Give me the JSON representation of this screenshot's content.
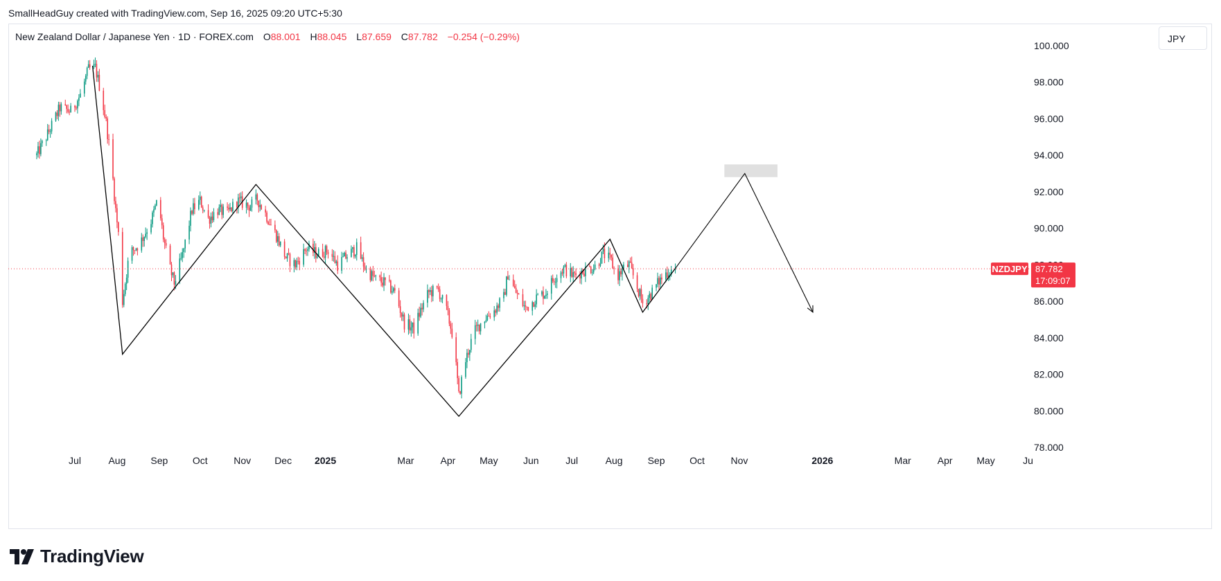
{
  "credit": "SmallHeadGuy created with TradingView.com, Sep 16, 2025 09:20 UTC+5:30",
  "legend": {
    "symbol_desc": "New Zealand Dollar / Japanese Yen · 1D · FOREX.com",
    "open_label": "O",
    "open": "88.001",
    "high_label": "H",
    "high": "88.045",
    "low_label": "L",
    "low": "87.659",
    "close_label": "C",
    "close": "87.782",
    "change": "−0.254 (−0.29%)"
  },
  "currency_button": "JPY",
  "price_badge": {
    "symbol": "NZDJPY",
    "price": "87.782",
    "countdown": "17:09:07"
  },
  "logo": {
    "text": "TradingView",
    "icon": "tradingview-logo-icon"
  },
  "colors": {
    "up": "#089981",
    "down": "#f23645",
    "accent": "#f23645",
    "text": "#131722",
    "grid": "#e0e3eb"
  },
  "chart_data": {
    "type": "candlestick",
    "symbol": "NZDJPY",
    "interval": "1D",
    "ylim": [
      78,
      100
    ],
    "y_ticks": [
      "78.000",
      "80.000",
      "82.000",
      "84.000",
      "86.000",
      "88.000",
      "90.000",
      "92.000",
      "94.000",
      "96.000",
      "98.000",
      "100.000"
    ],
    "x_ticks": [
      {
        "label": "Jul",
        "date": "2024-07-01",
        "bold": false
      },
      {
        "label": "Aug",
        "date": "2024-08-01",
        "bold": false
      },
      {
        "label": "Sep",
        "date": "2024-09-01",
        "bold": false
      },
      {
        "label": "Oct",
        "date": "2024-10-01",
        "bold": false
      },
      {
        "label": "Nov",
        "date": "2024-11-01",
        "bold": false
      },
      {
        "label": "Dec",
        "date": "2024-12-01",
        "bold": false
      },
      {
        "label": "2025",
        "date": "2025-01-01",
        "bold": true
      },
      {
        "label": "Mar",
        "date": "2025-03-01",
        "bold": false
      },
      {
        "label": "Apr",
        "date": "2025-04-01",
        "bold": false
      },
      {
        "label": "May",
        "date": "2025-05-01",
        "bold": false
      },
      {
        "label": "Jun",
        "date": "2025-06-01",
        "bold": false
      },
      {
        "label": "Jul",
        "date": "2025-07-01",
        "bold": false
      },
      {
        "label": "Aug",
        "date": "2025-08-01",
        "bold": false
      },
      {
        "label": "Sep",
        "date": "2025-09-01",
        "bold": false
      },
      {
        "label": "Oct",
        "date": "2025-10-01",
        "bold": false
      },
      {
        "label": "Nov",
        "date": "2025-11-01",
        "bold": false
      },
      {
        "label": "2026",
        "date": "2026-01-01",
        "bold": true
      },
      {
        "label": "Mar",
        "date": "2026-03-01",
        "bold": false
      },
      {
        "label": "Apr",
        "date": "2026-04-01",
        "bold": false
      },
      {
        "label": "May",
        "date": "2026-05-01",
        "bold": false
      },
      {
        "label": "Ju",
        "date": "2026-06-01",
        "bold": false
      }
    ],
    "price_path": [
      [
        "2024-06-03",
        94.0
      ],
      [
        "2024-06-12",
        95.3
      ],
      [
        "2024-06-20",
        96.6
      ],
      [
        "2024-06-28",
        96.4
      ],
      [
        "2024-07-05",
        97.3
      ],
      [
        "2024-07-11",
        98.7
      ],
      [
        "2024-07-16",
        98.8
      ],
      [
        "2024-07-20",
        97.5
      ],
      [
        "2024-07-24",
        95.8
      ],
      [
        "2024-07-28",
        93.5
      ],
      [
        "2024-07-31",
        91.0
      ],
      [
        "2024-08-03",
        89.0
      ],
      [
        "2024-08-05",
        86.0
      ],
      [
        "2024-08-10",
        88.6
      ],
      [
        "2024-08-18",
        89.2
      ],
      [
        "2024-08-26",
        90.4
      ],
      [
        "2024-08-31",
        91.6
      ],
      [
        "2024-09-04",
        89.5
      ],
      [
        "2024-09-08",
        88.0
      ],
      [
        "2024-09-12",
        87.0
      ],
      [
        "2024-09-18",
        88.5
      ],
      [
        "2024-09-25",
        91.0
      ],
      [
        "2024-10-01",
        91.5
      ],
      [
        "2024-10-07",
        90.5
      ],
      [
        "2024-10-14",
        91.0
      ],
      [
        "2024-10-21",
        90.8
      ],
      [
        "2024-10-28",
        91.5
      ],
      [
        "2024-11-07",
        91.2
      ],
      [
        "2024-11-12",
        91.6
      ],
      [
        "2024-11-18",
        90.8
      ],
      [
        "2024-11-26",
        89.6
      ],
      [
        "2024-12-03",
        88.4
      ],
      [
        "2024-12-10",
        88.0
      ],
      [
        "2024-12-18",
        88.9
      ],
      [
        "2024-12-26",
        88.6
      ],
      [
        "2025-01-03",
        88.8
      ],
      [
        "2025-01-10",
        88.0
      ],
      [
        "2025-01-17",
        88.5
      ],
      [
        "2025-01-24",
        88.9
      ],
      [
        "2025-01-31",
        87.7
      ],
      [
        "2025-02-07",
        87.2
      ],
      [
        "2025-02-14",
        87.0
      ],
      [
        "2025-02-21",
        86.5
      ],
      [
        "2025-02-28",
        84.8
      ],
      [
        "2025-03-07",
        84.5
      ],
      [
        "2025-03-12",
        85.5
      ],
      [
        "2025-03-18",
        86.5
      ],
      [
        "2025-03-25",
        86.6
      ],
      [
        "2025-03-31",
        85.5
      ],
      [
        "2025-04-05",
        84.0
      ],
      [
        "2025-04-09",
        80.8
      ],
      [
        "2025-04-13",
        82.5
      ],
      [
        "2025-04-20",
        84.3
      ],
      [
        "2025-04-27",
        85.0
      ],
      [
        "2025-05-05",
        85.5
      ],
      [
        "2025-05-12",
        86.2
      ],
      [
        "2025-05-15",
        87.5
      ],
      [
        "2025-05-20",
        86.6
      ],
      [
        "2025-05-28",
        85.6
      ],
      [
        "2025-06-05",
        86.2
      ],
      [
        "2025-06-12",
        86.5
      ],
      [
        "2025-06-18",
        87.3
      ],
      [
        "2025-06-25",
        87.8
      ],
      [
        "2025-07-02",
        87.4
      ],
      [
        "2025-07-10",
        87.7
      ],
      [
        "2025-07-18",
        87.9
      ],
      [
        "2025-07-24",
        88.6
      ],
      [
        "2025-07-30",
        88.2
      ],
      [
        "2025-08-03",
        87.3
      ],
      [
        "2025-08-08",
        87.8
      ],
      [
        "2025-08-12",
        88.0
      ],
      [
        "2025-08-16",
        87.2
      ],
      [
        "2025-08-22",
        85.9
      ],
      [
        "2025-08-28",
        86.4
      ],
      [
        "2025-09-03",
        87.1
      ],
      [
        "2025-09-09",
        87.6
      ],
      [
        "2025-09-15",
        87.8
      ]
    ],
    "last_price": 87.782,
    "drawings": {
      "zigzag_history": [
        [
          "2024-07-14",
          98.9
        ],
        [
          "2024-08-05",
          83.1
        ],
        [
          "2024-11-11",
          92.4
        ],
        [
          "2025-04-09",
          79.7
        ],
        [
          "2025-07-29",
          89.4
        ],
        [
          "2025-08-22",
          85.4
        ],
        [
          "2025-09-15",
          87.8
        ]
      ],
      "projection": [
        [
          "2025-09-15",
          87.8
        ],
        [
          "2025-11-05",
          93.0
        ],
        [
          "2025-12-25",
          85.4
        ]
      ],
      "target_zone": {
        "date_from": "2025-10-21",
        "date_to": "2025-11-29",
        "price_low": 92.8,
        "price_high": 93.5
      }
    }
  }
}
